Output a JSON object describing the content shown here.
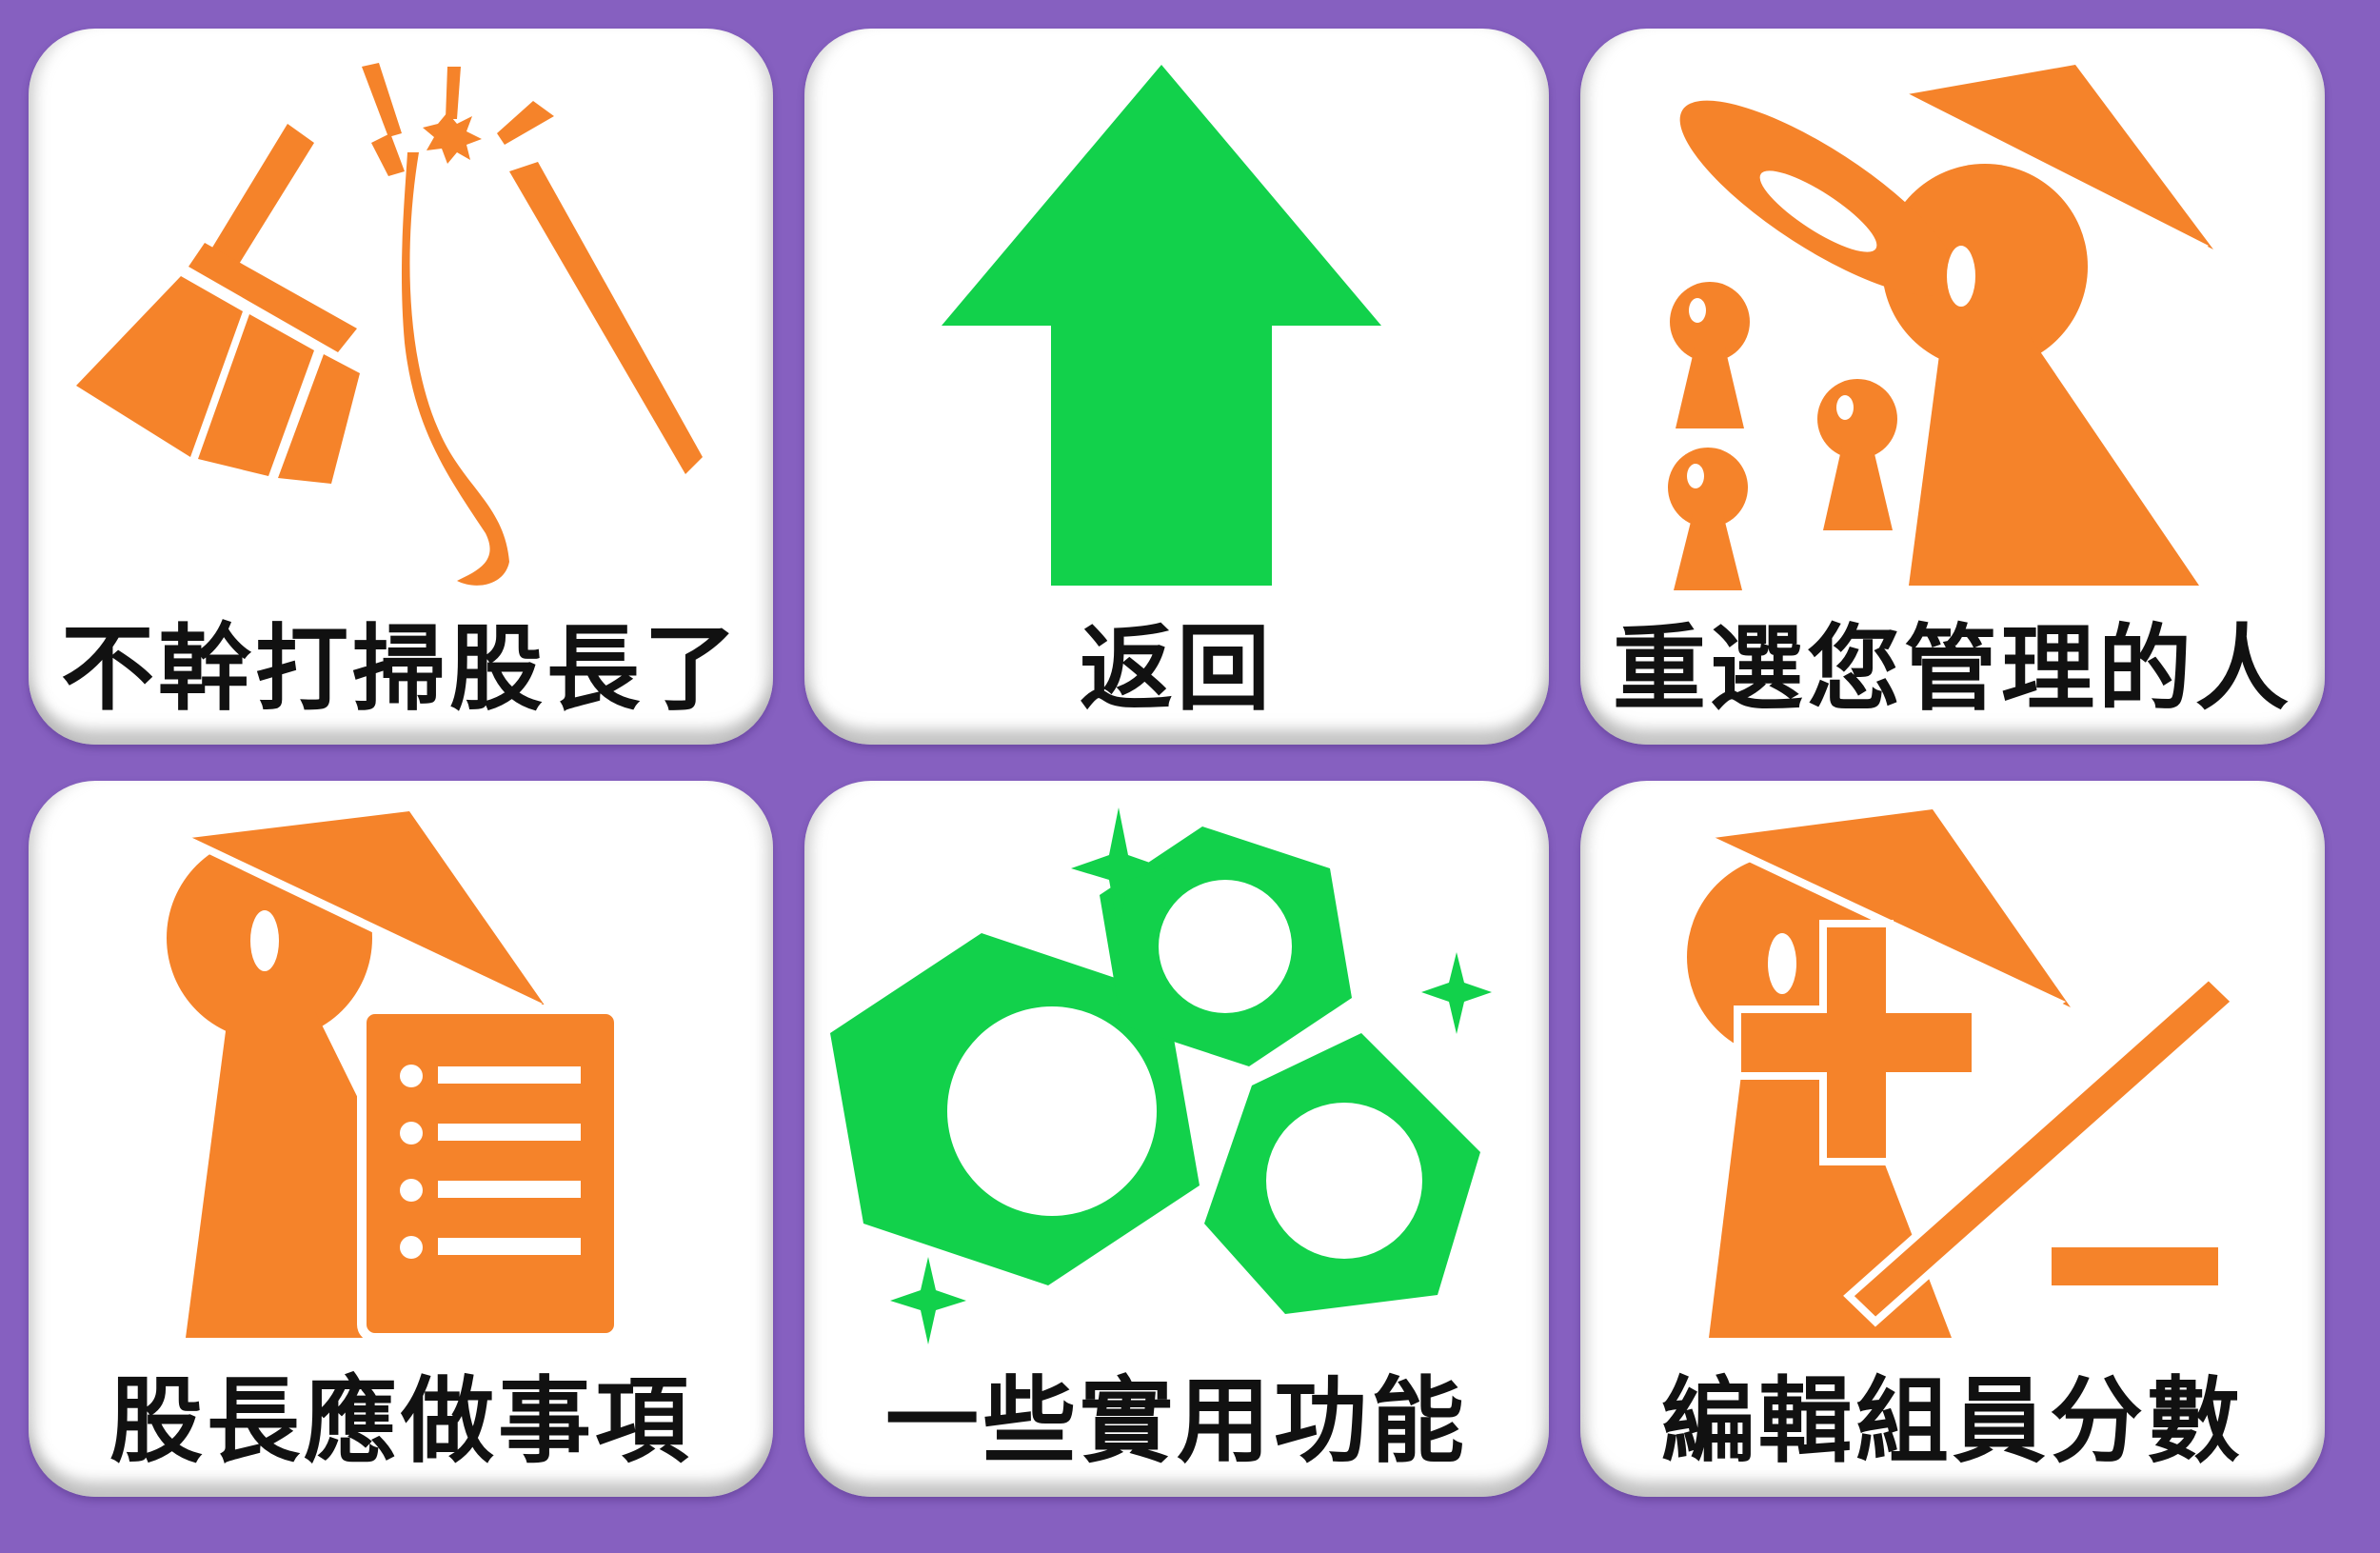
{
  "colors": {
    "background": "#8660c0",
    "card": "#ffffff",
    "orange": "#f5832a",
    "green": "#12d14b",
    "label": "#111111"
  },
  "tiles": [
    {
      "label": "不幹打掃股長了",
      "icon": "broken-broom-icon",
      "color": "#f5832a"
    },
    {
      "label": "返回",
      "icon": "arrow-up-icon",
      "color": "#12d14b"
    },
    {
      "label": "重選您管理的人",
      "icon": "leader-with-members-icon",
      "color": "#f5832a"
    },
    {
      "label": "股長應做事項",
      "icon": "leader-checklist-icon",
      "color": "#f5832a"
    },
    {
      "label": "一些實用功能",
      "icon": "hex-nuts-icon",
      "color": "#12d14b"
    },
    {
      "label": "編輯組員分數",
      "icon": "leader-plus-minus-icon",
      "color": "#f5832a"
    }
  ]
}
